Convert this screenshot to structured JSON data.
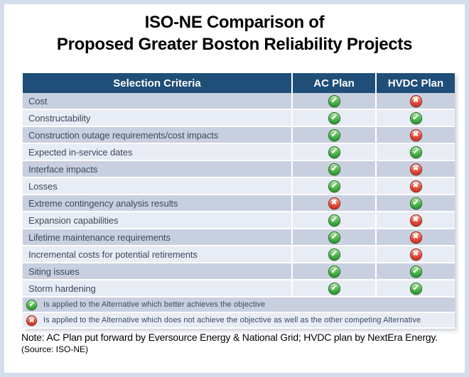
{
  "title": {
    "line1": "ISO-NE Comparison of",
    "line2": "Proposed Greater Boston Reliability Projects"
  },
  "table": {
    "headers": {
      "criteria": "Selection Criteria",
      "ac": "AC Plan",
      "hvdc": "HVDC Plan"
    },
    "rows": [
      {
        "criteria": "Cost",
        "ac": "check",
        "hvdc": "cross"
      },
      {
        "criteria": "Constructability",
        "ac": "check",
        "hvdc": "check"
      },
      {
        "criteria": "Construction outage requirements/cost impacts",
        "ac": "check",
        "hvdc": "cross"
      },
      {
        "criteria": "Expected in-service dates",
        "ac": "check",
        "hvdc": "check"
      },
      {
        "criteria": "Interface impacts",
        "ac": "check",
        "hvdc": "cross"
      },
      {
        "criteria": "Losses",
        "ac": "check",
        "hvdc": "cross"
      },
      {
        "criteria": "Extreme contingency analysis results",
        "ac": "cross",
        "hvdc": "check"
      },
      {
        "criteria": "Expansion capabilities",
        "ac": "check",
        "hvdc": "cross"
      },
      {
        "criteria": "Lifetime maintenance requirements",
        "ac": "check",
        "hvdc": "cross"
      },
      {
        "criteria": "Incremental costs for potential retirements",
        "ac": "check",
        "hvdc": "cross"
      },
      {
        "criteria": "Siting issues",
        "ac": "check",
        "hvdc": "check"
      },
      {
        "criteria": "Storm hardening",
        "ac": "check",
        "hvdc": "check"
      }
    ],
    "legend": [
      {
        "icon": "check",
        "text": "Is applied to the Alternative which better achieves the objective"
      },
      {
        "icon": "cross",
        "text": "Is applied to the Alternative which does not achieve the objective as well as the other competing Alternative"
      }
    ]
  },
  "note": {
    "line1": "Note: AC Plan put forward by Eversource Energy & National Grid; HVDC plan by NextEra Energy.",
    "line2": "(Source: ISO-NE)"
  },
  "colors": {
    "header_bg": "#1f4e79",
    "row_dark": "#c8d0e0",
    "row_light": "#e8ecf4",
    "check_green": "#2e9e2e",
    "cross_red": "#d93025",
    "page_border": "#d4ddeb",
    "row_text": "#3c4a5e"
  }
}
